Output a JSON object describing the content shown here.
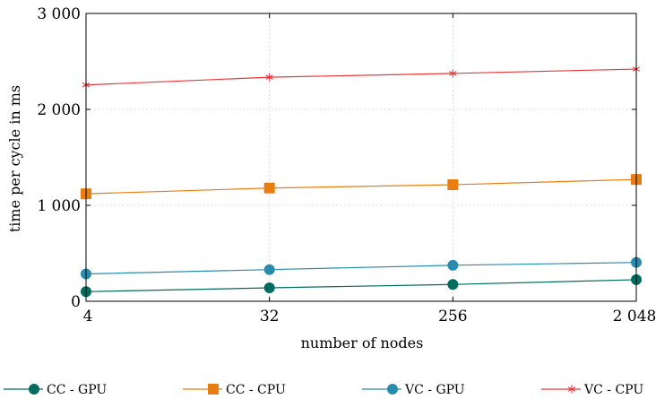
{
  "chart_data": {
    "type": "line",
    "title": "",
    "xlabel": "number of nodes",
    "ylabel": "time per cycle in ms",
    "x_categories": [
      "4",
      "32",
      "256",
      "2 048"
    ],
    "y_ticks": [
      0,
      1000,
      2000,
      3000
    ],
    "y_tick_labels": [
      "0",
      "1 000",
      "2 000",
      "3 000"
    ],
    "ylim": [
      0,
      3000
    ],
    "grid": true,
    "legend_position": "bottom",
    "series": [
      {
        "name": "CC - GPU",
        "color": "#006b5f",
        "marker": "circle",
        "values": [
          100,
          140,
          175,
          225
        ]
      },
      {
        "name": "CC - CPU",
        "color": "#e87d12",
        "marker": "square",
        "values": [
          1120,
          1180,
          1215,
          1270
        ]
      },
      {
        "name": "VC - GPU",
        "color": "#2a8cad",
        "marker": "circle",
        "values": [
          285,
          330,
          375,
          405
        ]
      },
      {
        "name": "VC - CPU",
        "color": "#e8393a",
        "marker": "star",
        "values": [
          2255,
          2335,
          2375,
          2420
        ]
      }
    ]
  }
}
